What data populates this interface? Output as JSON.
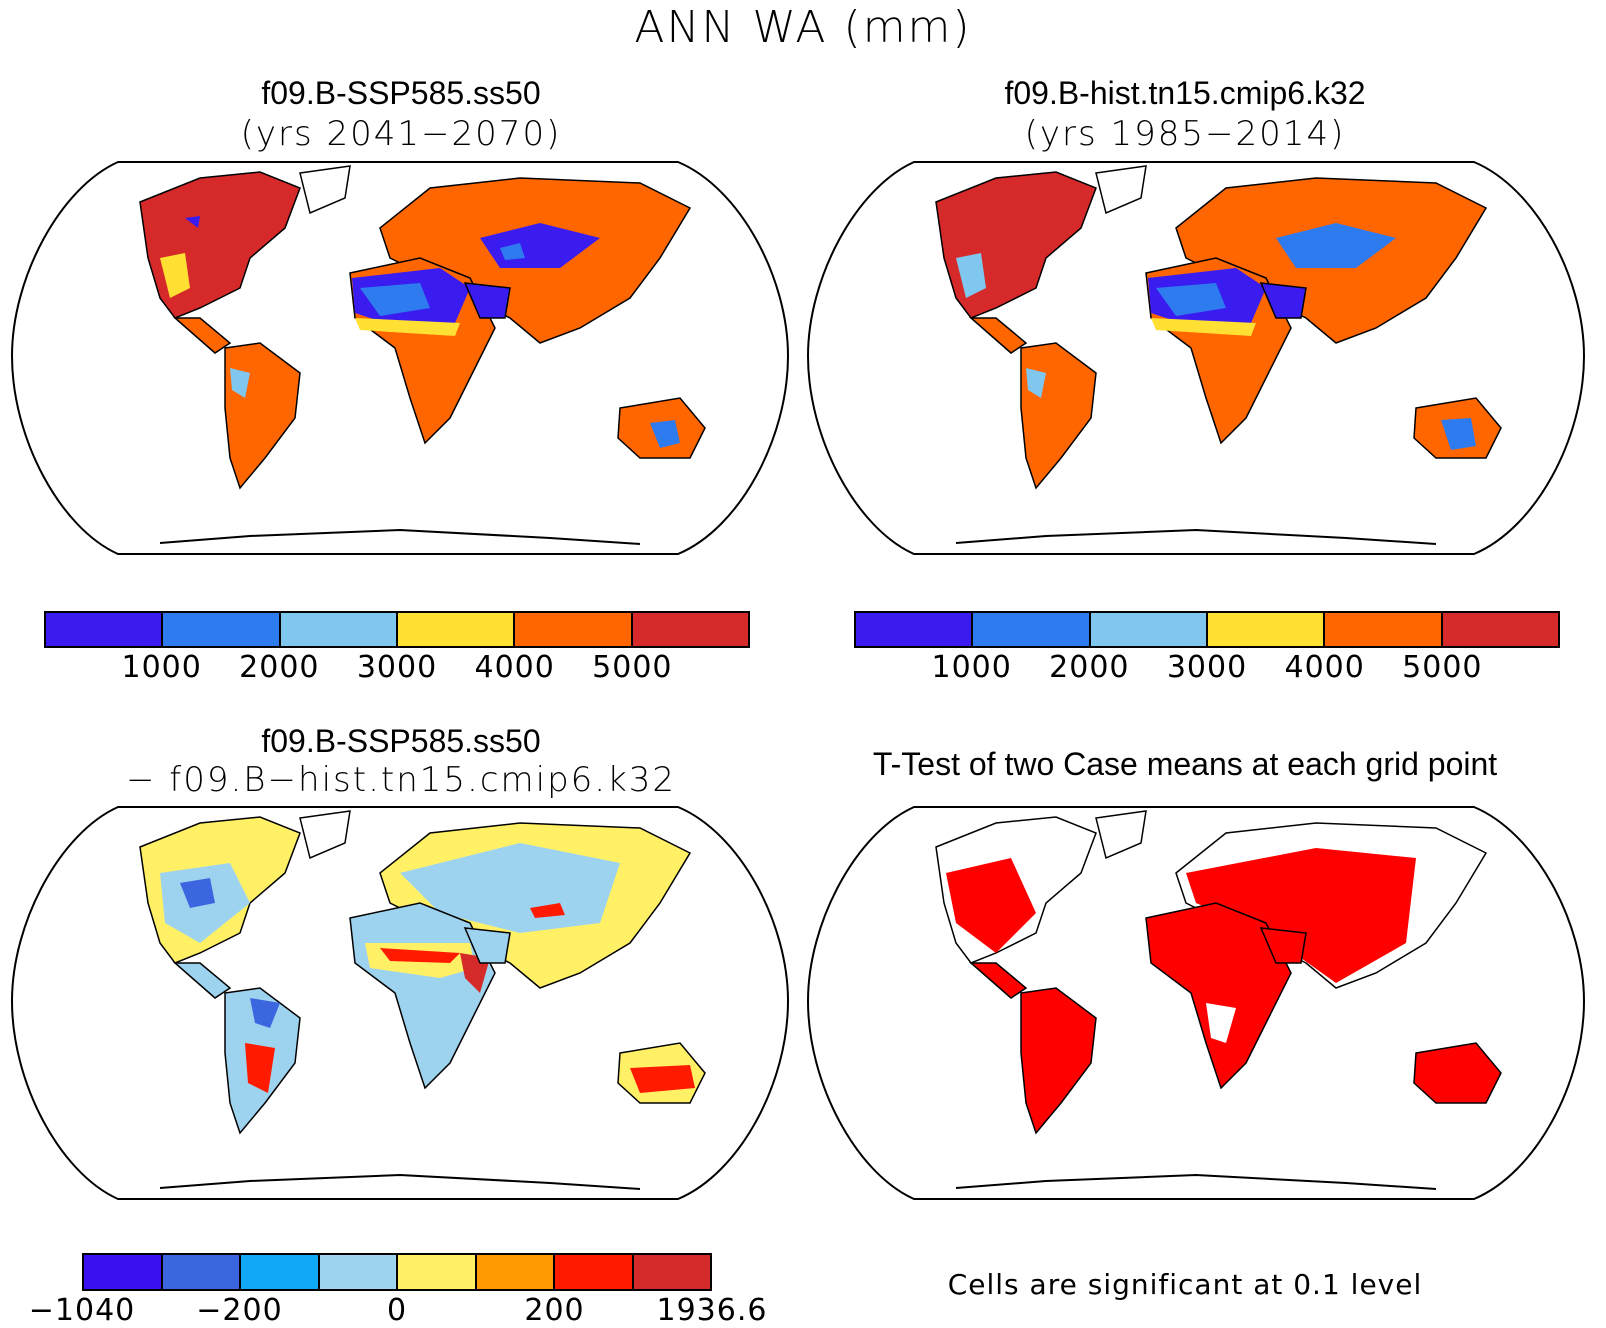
{
  "figure": {
    "title": "ANN WA (mm)",
    "panels": [
      {
        "title": "f09.B-SSP585.ss50",
        "subtitle": "(yrs 2041−2070)",
        "colorbar": {
          "colors": [
            "#3a1cf0",
            "#2e7bf0",
            "#7fc7ee",
            "#ffe033",
            "#ff6600",
            "#d62a2a"
          ],
          "labels": [
            "1000",
            "2000",
            "3000",
            "4000",
            "5000"
          ]
        }
      },
      {
        "title": "f09.B-hist.tn15.cmip6.k32",
        "subtitle": "(yrs 1985−2014)",
        "colorbar": {
          "colors": [
            "#3a1cf0",
            "#2e7bf0",
            "#7fc7ee",
            "#ffe033",
            "#ff6600",
            "#d62a2a"
          ],
          "labels": [
            "1000",
            "2000",
            "3000",
            "4000",
            "5000"
          ]
        }
      },
      {
        "title": "f09.B-SSP585.ss50",
        "subtitle": "− f09.B−hist.tn15.cmip6.k32",
        "colorbar": {
          "colors": [
            "#3a10f0",
            "#3c66e0",
            "#11a8f5",
            "#9ed3ef",
            "#fff066",
            "#ff9a00",
            "#ff1a00",
            "#d42a2a"
          ],
          "labels": [
            "−1040",
            "−200",
            "0",
            "200",
            "1936.6"
          ]
        }
      },
      {
        "title": "T-Test of two Case means at each grid point",
        "note": "Cells are significant at 0.1 level"
      }
    ]
  }
}
